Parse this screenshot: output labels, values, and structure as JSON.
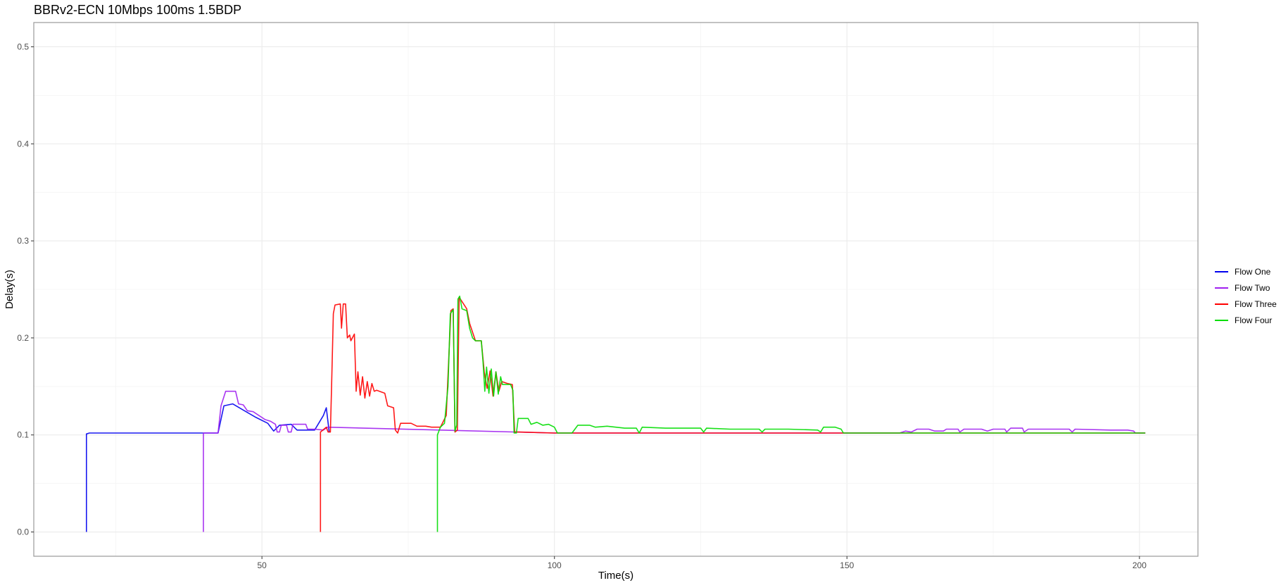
{
  "chart_data": {
    "type": "line",
    "title": "BBRv2-ECN 10Mbps 100ms 1.5BDP",
    "xlabel": "Time(s)",
    "ylabel": "Delay(s)",
    "xlim": [
      11,
      210
    ],
    "ylim": [
      -0.025,
      0.525
    ],
    "x_ticks": [
      50,
      100,
      150,
      200
    ],
    "x_tick_labels": [
      "50",
      "100",
      "150",
      "200"
    ],
    "y_ticks": [
      0.0,
      0.1,
      0.2,
      0.3,
      0.4,
      0.5
    ],
    "y_tick_labels": [
      "0.0",
      "0.1",
      "0.2",
      "0.3",
      "0.4",
      "0.5"
    ],
    "grid": true,
    "legend_position": "right",
    "colors": {
      "Flow One": "#0000ee",
      "Flow Two": "#a020f0",
      "Flow Three": "#ff0000",
      "Flow Four": "#00dd00"
    },
    "series": [
      {
        "name": "Flow One",
        "color": "#0000ee",
        "points": [
          [
            20,
            0.0
          ],
          [
            20,
            0.101
          ],
          [
            20.5,
            0.102
          ],
          [
            30,
            0.102
          ],
          [
            40,
            0.102
          ],
          [
            42.5,
            0.102
          ],
          [
            43.5,
            0.13
          ],
          [
            45,
            0.132
          ],
          [
            47,
            0.125
          ],
          [
            49,
            0.118
          ],
          [
            51,
            0.112
          ],
          [
            52,
            0.104
          ],
          [
            53,
            0.11
          ],
          [
            55,
            0.111
          ],
          [
            56,
            0.105
          ],
          [
            59,
            0.105
          ],
          [
            60.5,
            0.12
          ],
          [
            61,
            0.128
          ],
          [
            61.5,
            0.103
          ]
        ]
      },
      {
        "name": "Flow Two",
        "color": "#a020f0",
        "points": [
          [
            40,
            0.0
          ],
          [
            40,
            0.102
          ],
          [
            42.5,
            0.102
          ],
          [
            43,
            0.13
          ],
          [
            43.8,
            0.145
          ],
          [
            45.5,
            0.145
          ],
          [
            46,
            0.132
          ],
          [
            46.8,
            0.131
          ],
          [
            47.5,
            0.125
          ],
          [
            48.5,
            0.124
          ],
          [
            49.5,
            0.12
          ],
          [
            50.5,
            0.116
          ],
          [
            51.5,
            0.114
          ],
          [
            52.3,
            0.111
          ],
          [
            52.6,
            0.103
          ],
          [
            53,
            0.103
          ],
          [
            53.3,
            0.11
          ],
          [
            54.2,
            0.11
          ],
          [
            54.5,
            0.103
          ],
          [
            55,
            0.103
          ],
          [
            55.3,
            0.111
          ],
          [
            57.5,
            0.111
          ],
          [
            57.8,
            0.106
          ],
          [
            59,
            0.106
          ],
          [
            60.5,
            0.105
          ],
          [
            61.2,
            0.108
          ],
          [
            100,
            0.102
          ],
          [
            103,
            0.102
          ],
          [
            110,
            0.102
          ],
          [
            120,
            0.102
          ],
          [
            130,
            0.102
          ],
          [
            140,
            0.102
          ],
          [
            150,
            0.102
          ],
          [
            159,
            0.102
          ],
          [
            160,
            0.104
          ],
          [
            161,
            0.103
          ],
          [
            162,
            0.106
          ],
          [
            164,
            0.106
          ],
          [
            165,
            0.104
          ],
          [
            166.5,
            0.104
          ],
          [
            167,
            0.106
          ],
          [
            169,
            0.106
          ],
          [
            169.3,
            0.103
          ],
          [
            170,
            0.106
          ],
          [
            173,
            0.106
          ],
          [
            174,
            0.104
          ],
          [
            175,
            0.106
          ],
          [
            177,
            0.106
          ],
          [
            177.3,
            0.103
          ],
          [
            178,
            0.107
          ],
          [
            180,
            0.107
          ],
          [
            180.3,
            0.103
          ],
          [
            181,
            0.106
          ],
          [
            185,
            0.106
          ],
          [
            186,
            0.106
          ],
          [
            188,
            0.106
          ],
          [
            188.5,
            0.103
          ],
          [
            189,
            0.106
          ],
          [
            195,
            0.105
          ],
          [
            198,
            0.105
          ],
          [
            199,
            0.104
          ],
          [
            199.3,
            0.102
          ],
          [
            201,
            0.102
          ]
        ]
      },
      {
        "name": "Flow Three",
        "color": "#ff0000",
        "points": [
          [
            60,
            0.0
          ],
          [
            60,
            0.103
          ],
          [
            61,
            0.108
          ],
          [
            61.3,
            0.103
          ],
          [
            61.7,
            0.103
          ],
          [
            61.9,
            0.15
          ],
          [
            62.2,
            0.225
          ],
          [
            62.5,
            0.234
          ],
          [
            63.4,
            0.235
          ],
          [
            63.6,
            0.21
          ],
          [
            63.9,
            0.235
          ],
          [
            64.3,
            0.235
          ],
          [
            64.6,
            0.2
          ],
          [
            65,
            0.203
          ],
          [
            65.2,
            0.197
          ],
          [
            65.8,
            0.204
          ],
          [
            66.1,
            0.145
          ],
          [
            66.4,
            0.165
          ],
          [
            66.8,
            0.141
          ],
          [
            67.2,
            0.16
          ],
          [
            67.6,
            0.138
          ],
          [
            68,
            0.155
          ],
          [
            68.4,
            0.14
          ],
          [
            68.8,
            0.153
          ],
          [
            69.2,
            0.145
          ],
          [
            69.6,
            0.146
          ],
          [
            71,
            0.143
          ],
          [
            71.5,
            0.13
          ],
          [
            72.5,
            0.128
          ],
          [
            72.8,
            0.105
          ],
          [
            73.2,
            0.102
          ],
          [
            73.7,
            0.112
          ],
          [
            75.5,
            0.112
          ],
          [
            76.5,
            0.109
          ],
          [
            78,
            0.109
          ],
          [
            79,
            0.108
          ],
          [
            80.5,
            0.108
          ],
          [
            81.5,
            0.12
          ],
          [
            82.3,
            0.228
          ],
          [
            82.7,
            0.23
          ],
          [
            83,
            0.103
          ],
          [
            83.4,
            0.105
          ],
          [
            83.7,
            0.242
          ],
          [
            85,
            0.23
          ],
          [
            85.5,
            0.215
          ],
          [
            86.5,
            0.197
          ],
          [
            87.5,
            0.197
          ],
          [
            88,
            0.165
          ],
          [
            88.5,
            0.148
          ],
          [
            89,
            0.166
          ],
          [
            89.5,
            0.14
          ],
          [
            90,
            0.165
          ],
          [
            90.5,
            0.145
          ],
          [
            91,
            0.155
          ],
          [
            92,
            0.153
          ],
          [
            92.8,
            0.152
          ],
          [
            93.2,
            0.103
          ],
          [
            94,
            0.103
          ],
          [
            100,
            0.102
          ],
          [
            110,
            0.102
          ],
          [
            120,
            0.102
          ],
          [
            130,
            0.102
          ],
          [
            140,
            0.102
          ],
          [
            150,
            0.102
          ],
          [
            160,
            0.102
          ],
          [
            180,
            0.102
          ],
          [
            200,
            0.102
          ],
          [
            201,
            0.102
          ]
        ]
      },
      {
        "name": "Flow Four",
        "color": "#00dd00",
        "points": [
          [
            80,
            0.0
          ],
          [
            80,
            0.1
          ],
          [
            80.5,
            0.108
          ],
          [
            81.2,
            0.112
          ],
          [
            81.8,
            0.15
          ],
          [
            82.2,
            0.225
          ],
          [
            82.7,
            0.229
          ],
          [
            83,
            0.104
          ],
          [
            83.3,
            0.11
          ],
          [
            83.5,
            0.24
          ],
          [
            83.8,
            0.243
          ],
          [
            84.2,
            0.23
          ],
          [
            85,
            0.228
          ],
          [
            85.5,
            0.21
          ],
          [
            86,
            0.2
          ],
          [
            86.5,
            0.197
          ],
          [
            87.5,
            0.197
          ],
          [
            87.8,
            0.175
          ],
          [
            88.1,
            0.145
          ],
          [
            88.4,
            0.17
          ],
          [
            88.8,
            0.143
          ],
          [
            89.2,
            0.168
          ],
          [
            89.6,
            0.14
          ],
          [
            90,
            0.165
          ],
          [
            90.4,
            0.142
          ],
          [
            90.8,
            0.16
          ],
          [
            91.1,
            0.152
          ],
          [
            92.5,
            0.152
          ],
          [
            92.9,
            0.146
          ],
          [
            93.1,
            0.102
          ],
          [
            93.5,
            0.102
          ],
          [
            93.8,
            0.117
          ],
          [
            95.5,
            0.117
          ],
          [
            96,
            0.111
          ],
          [
            97,
            0.113
          ],
          [
            98,
            0.11
          ],
          [
            99,
            0.111
          ],
          [
            100,
            0.108
          ],
          [
            100.5,
            0.102
          ],
          [
            101,
            0.102
          ],
          [
            103,
            0.102
          ],
          [
            104,
            0.11
          ],
          [
            106,
            0.11
          ],
          [
            107,
            0.108
          ],
          [
            109,
            0.109
          ],
          [
            112,
            0.107
          ],
          [
            114,
            0.107
          ],
          [
            114.5,
            0.102
          ],
          [
            115,
            0.108
          ],
          [
            119,
            0.107
          ],
          [
            125,
            0.107
          ],
          [
            125.5,
            0.103
          ],
          [
            126,
            0.107
          ],
          [
            130,
            0.106
          ],
          [
            135,
            0.106
          ],
          [
            135.5,
            0.103
          ],
          [
            136,
            0.106
          ],
          [
            140,
            0.106
          ],
          [
            145,
            0.105
          ],
          [
            145.5,
            0.103
          ],
          [
            146,
            0.108
          ],
          [
            148,
            0.108
          ],
          [
            149,
            0.106
          ],
          [
            149.4,
            0.102
          ],
          [
            150,
            0.102
          ],
          [
            160,
            0.102
          ],
          [
            170,
            0.102
          ],
          [
            180,
            0.102
          ],
          [
            190,
            0.102
          ],
          [
            200,
            0.102
          ],
          [
            201,
            0.102
          ]
        ]
      }
    ]
  }
}
